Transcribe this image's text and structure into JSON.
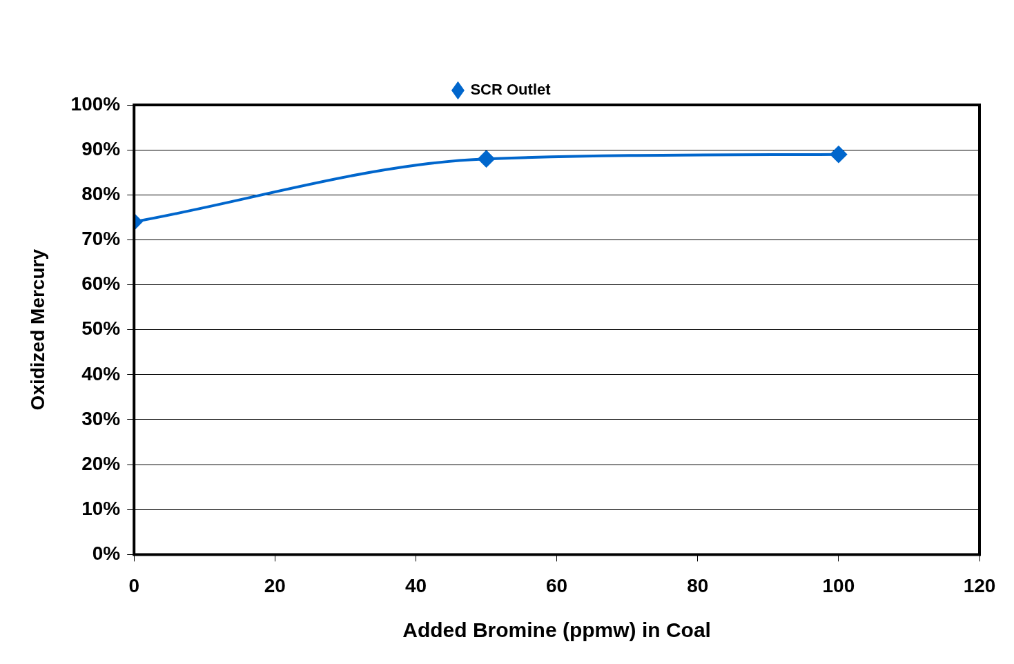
{
  "chart_data": {
    "type": "line",
    "xlabel": "Added Bromine (ppmw) in Coal",
    "ylabel": "Oxidized Mercury",
    "x": [
      0,
      50,
      100
    ],
    "series": [
      {
        "name": "SCR Outlet",
        "color": "#0066cc",
        "values": [
          74,
          88,
          89
        ]
      }
    ],
    "xlim": [
      0,
      120
    ],
    "xticks": [
      0,
      20,
      40,
      60,
      80,
      100,
      120
    ],
    "ylim": [
      0,
      100
    ],
    "yticks": [
      {
        "value": 0,
        "label": "0%"
      },
      {
        "value": 10,
        "label": "10%"
      },
      {
        "value": 20,
        "label": "20%"
      },
      {
        "value": 30,
        "label": "30%"
      },
      {
        "value": 40,
        "label": "40%"
      },
      {
        "value": 50,
        "label": "50%"
      },
      {
        "value": 60,
        "label": "60%"
      },
      {
        "value": 70,
        "label": "70%"
      },
      {
        "value": 80,
        "label": "80%"
      },
      {
        "value": 90,
        "label": "90%"
      },
      {
        "value": 100,
        "label": "100%"
      }
    ],
    "grid": "y",
    "legend": "top",
    "marker": "diamond",
    "line_style": "solid"
  }
}
